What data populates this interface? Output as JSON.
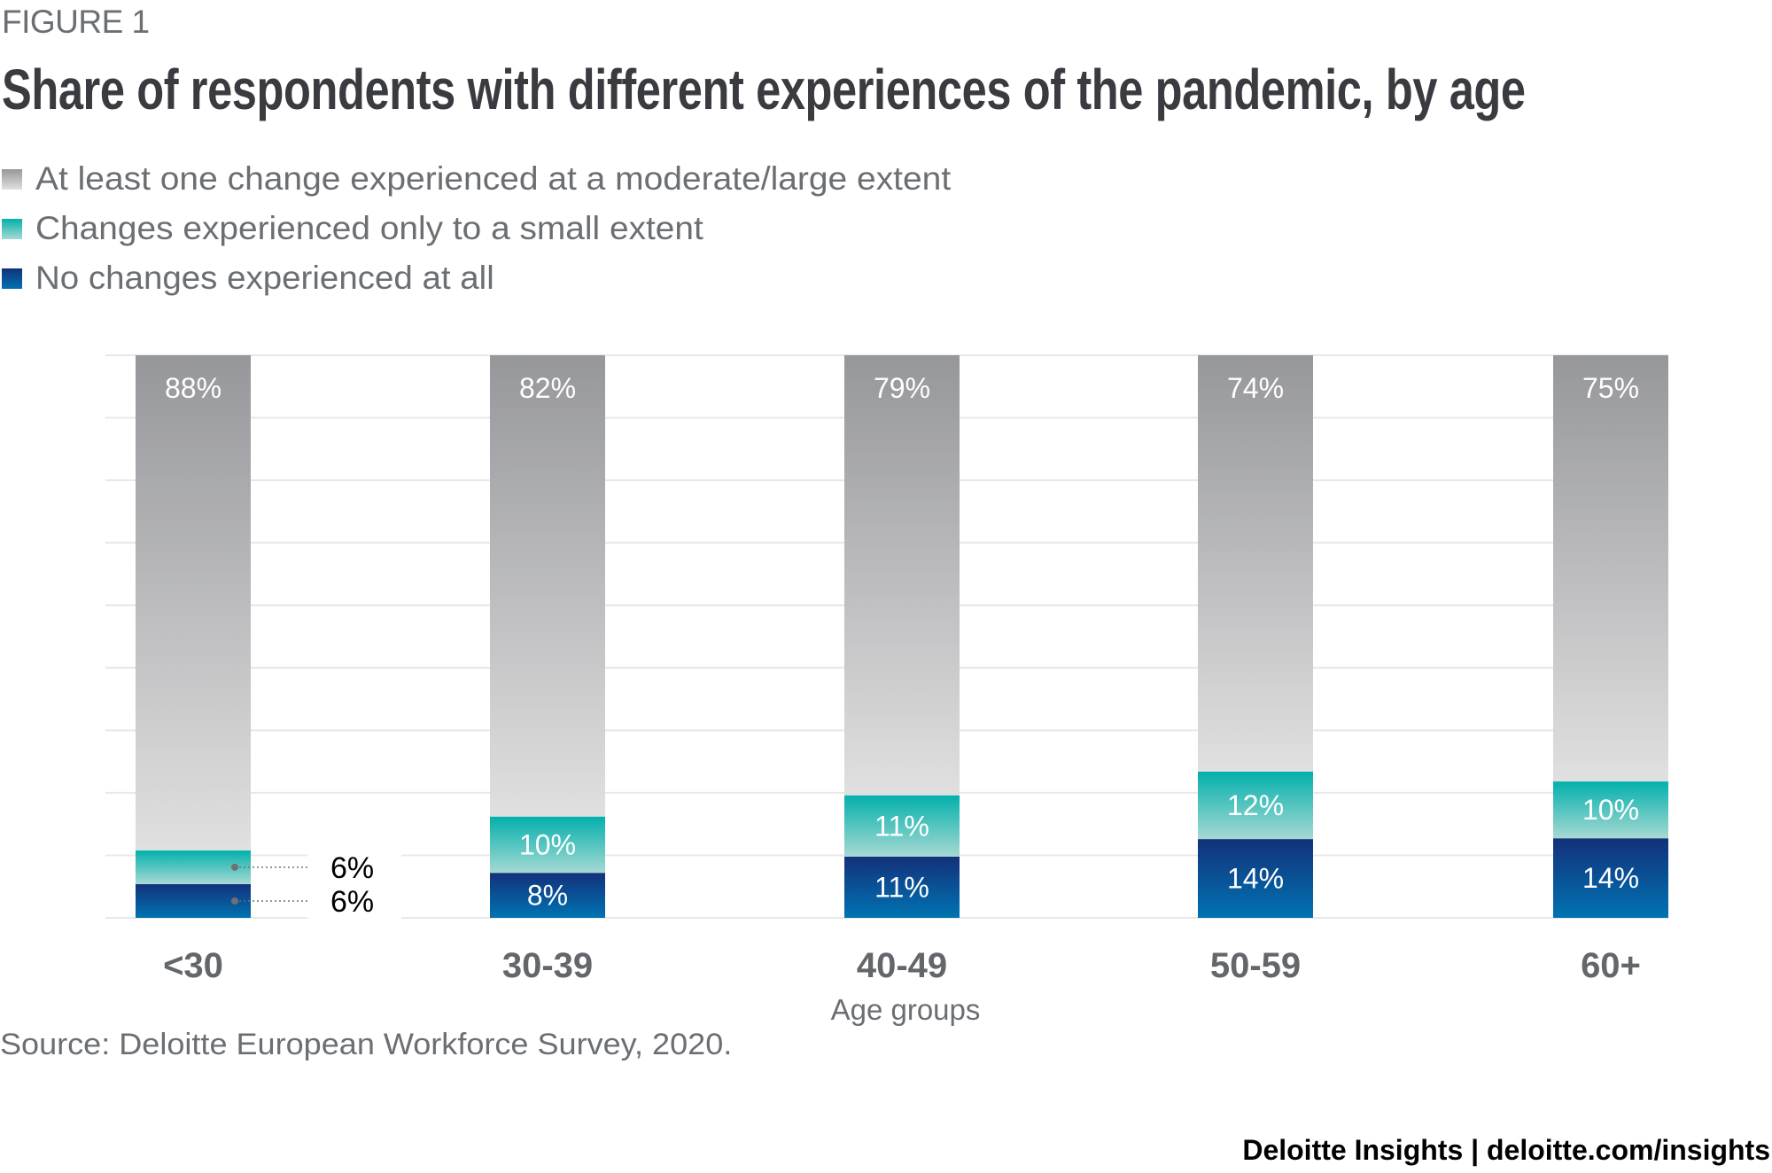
{
  "figure_label": "FIGURE 1",
  "title": "Share of respondents with different experiences of the pandemic, by age",
  "source": "Source: Deloitte European Workforce Survey, 2020.",
  "footer": "Deloitte Insights | deloitte.com/insights",
  "colors": {
    "moderate_large_top": "#96979b",
    "moderate_large_bottom": "#e0e0e0",
    "small_top": "#03b0ac",
    "small_bottom": "#a6d9d3",
    "none_top": "#13317a",
    "none_bottom": "#0073b2",
    "gridline": "#e8e8e8",
    "text_gray": "#6b6e73",
    "title": "#3a3b40"
  },
  "chart_data": {
    "type": "bar",
    "stacked": true,
    "title": "Share of respondents with different experiences of the pandemic, by age",
    "xlabel": "Age groups",
    "ylabel": "",
    "ylim": [
      0,
      100
    ],
    "grid": true,
    "legend_position": "top-left",
    "categories": [
      "<30",
      "30-39",
      "40-49",
      "50-59",
      "60+"
    ],
    "series": [
      {
        "name": "No changes experienced at all",
        "key": "none",
        "values": [
          6,
          8,
          11,
          14,
          14
        ],
        "labels": [
          "6%",
          "8%",
          "11%",
          "14%",
          "14%"
        ]
      },
      {
        "name": "Changes experienced only to a small extent",
        "key": "small",
        "values": [
          6,
          10,
          11,
          12,
          10
        ],
        "labels": [
          "6%",
          "10%",
          "11%",
          "12%",
          "10%"
        ]
      },
      {
        "name": "At least one change experienced at a moderate/large extent",
        "key": "moderate_large",
        "values": [
          88,
          82,
          79,
          74,
          75
        ],
        "labels": [
          "88%",
          "82%",
          "79%",
          "74%",
          "75%"
        ]
      }
    ],
    "legend": [
      {
        "name": "At least one change experienced at a moderate/large extent",
        "key": "moderate_large"
      },
      {
        "name": "Changes experienced only to a small extent",
        "key": "small"
      },
      {
        "name": "No changes experienced at all",
        "key": "none"
      }
    ]
  }
}
